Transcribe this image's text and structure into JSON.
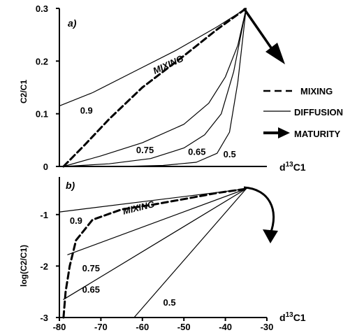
{
  "chart_data": [
    {
      "type": "line",
      "panel_label": "a)",
      "xlabel_main": "d",
      "xlabel_sup": "13",
      "xlabel_tail": "C1",
      "ylabel": "C2/C1",
      "xlim": [
        -80,
        -30
      ],
      "ylim": [
        0,
        0.3
      ],
      "y_ticks": [
        "0",
        "0.1",
        "0.2",
        "0.3"
      ],
      "grid": false,
      "legend_position": "right",
      "series": [
        {
          "name": "MIXING",
          "style": "dashed",
          "x": [
            -79,
            -74,
            -68,
            -60,
            -50,
            -42,
            -35
          ],
          "y": [
            0.0,
            0.04,
            0.09,
            0.15,
            0.21,
            0.26,
            0.3
          ]
        },
        {
          "name": "0.9",
          "style": "solid",
          "x": [
            -80,
            -72,
            -62,
            -52,
            -42,
            -35
          ],
          "y": [
            0.115,
            0.14,
            0.18,
            0.22,
            0.265,
            0.3
          ]
        },
        {
          "name": "0.75",
          "style": "solid",
          "x": [
            -79,
            -70,
            -60,
            -50,
            -44,
            -40,
            -37,
            -35
          ],
          "y": [
            0.0,
            0.02,
            0.045,
            0.08,
            0.12,
            0.17,
            0.23,
            0.3
          ]
        },
        {
          "name": "0.65",
          "style": "solid",
          "x": [
            -79,
            -68,
            -58,
            -50,
            -45,
            -41,
            -38,
            -35
          ],
          "y": [
            0.0,
            0.005,
            0.015,
            0.035,
            0.06,
            0.1,
            0.18,
            0.3
          ]
        },
        {
          "name": "0.5",
          "style": "solid",
          "x": [
            -78,
            -65,
            -55,
            -47,
            -42,
            -39,
            -37,
            -35
          ],
          "y": [
            0.0,
            0.0,
            0.002,
            0.008,
            0.025,
            0.065,
            0.16,
            0.3
          ]
        }
      ],
      "curve_labels": [
        {
          "text": "MIXING",
          "x": -57,
          "y": 0.175,
          "rotate": -25
        },
        {
          "text": "0.9",
          "x": -75,
          "y": 0.1
        },
        {
          "text": "0.75",
          "x": -61.5,
          "y": 0.025
        },
        {
          "text": "0.65",
          "x": -49,
          "y": 0.022
        },
        {
          "text": "0.5",
          "x": -40.5,
          "y": 0.017
        }
      ],
      "legend": [
        {
          "label": "MIXING",
          "style": "dashed"
        },
        {
          "label": "DIFFUSION",
          "style": "solid"
        },
        {
          "label": "MATURITY",
          "style": "arrow"
        }
      ]
    },
    {
      "type": "line",
      "panel_label": "b)",
      "xlabel_main": "d",
      "xlabel_sup": "13",
      "xlabel_tail": "C1",
      "ylabel": "log(C2/C1)",
      "xlim": [
        -80,
        -30
      ],
      "ylim": [
        -3,
        -0.5
      ],
      "x_ticks": [
        "-80",
        "-70",
        "-60",
        "-50",
        "-40",
        "-30"
      ],
      "y_ticks": [
        "-3",
        "-2",
        "-1"
      ],
      "grid": false,
      "series": [
        {
          "name": "MIXING",
          "style": "dashed",
          "x": [
            -79,
            -78.5,
            -77.5,
            -76,
            -72,
            -65,
            -57,
            -50,
            -42,
            -35
          ],
          "y": [
            -3.0,
            -2.5,
            -2.0,
            -1.5,
            -1.1,
            -0.9,
            -0.8,
            -0.7,
            -0.58,
            -0.5
          ]
        },
        {
          "name": "0.9",
          "style": "solid",
          "x": [
            -80,
            -35
          ],
          "y": [
            -0.95,
            -0.5
          ]
        },
        {
          "name": "0.75",
          "style": "solid",
          "x": [
            -78,
            -35
          ],
          "y": [
            -1.78,
            -0.5
          ]
        },
        {
          "name": "0.65",
          "style": "solid",
          "x": [
            -79,
            -35
          ],
          "y": [
            -2.65,
            -0.5
          ]
        },
        {
          "name": "0.5",
          "style": "solid",
          "x": [
            -62,
            -35
          ],
          "y": [
            -3.0,
            -0.5
          ]
        }
      ],
      "curve_labels": [
        {
          "text": "MIXING",
          "x": -64.5,
          "y": -1.0,
          "rotate": -14
        },
        {
          "text": "0.9",
          "x": -77.5,
          "y": -1.18
        },
        {
          "text": "0.75",
          "x": -74.5,
          "y": -2.1
        },
        {
          "text": "0.65",
          "x": -74.5,
          "y": -2.52
        },
        {
          "text": "0.5",
          "x": -55,
          "y": -2.77
        }
      ]
    }
  ]
}
